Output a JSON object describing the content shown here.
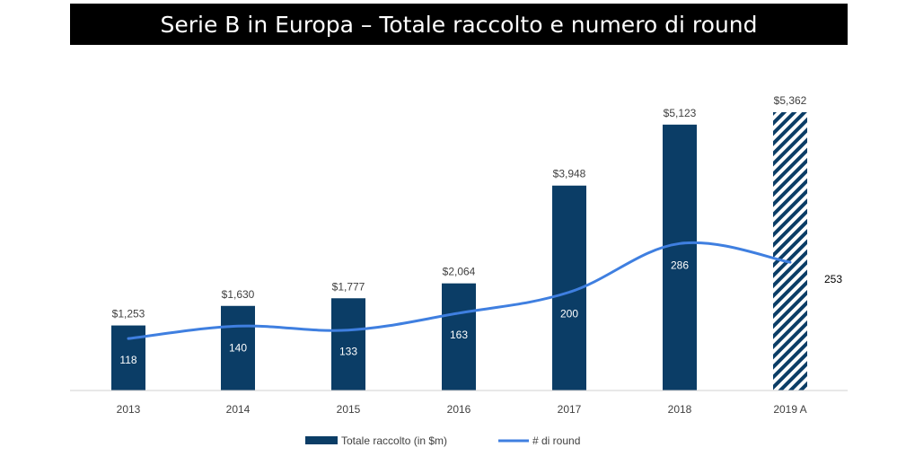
{
  "chart_data": {
    "type": "bar",
    "title": "Serie B in Europa – Totale raccolto e numero di round",
    "categories": [
      "2013",
      "2014",
      "2015",
      "2016",
      "2017",
      "2018",
      "2019 A"
    ],
    "series": [
      {
        "name": "Totale raccolto (in $m)",
        "type": "bar",
        "values": [
          1253,
          1630,
          1777,
          2064,
          3948,
          5123,
          5362
        ],
        "labels": [
          "$1,253",
          "$1,630",
          "$1,777",
          "$2,064",
          "$3,948",
          "$5,123",
          "$5,362"
        ],
        "color": "#0b3d66",
        "hatched_last": true
      },
      {
        "name": "# di round",
        "type": "line",
        "values": [
          118,
          140,
          133,
          163,
          200,
          286,
          253
        ],
        "labels": [
          "118",
          "140",
          "133",
          "163",
          "200",
          "286",
          "253"
        ],
        "color": "#3f7fe0"
      }
    ],
    "legend": "bottom",
    "grid": false
  }
}
